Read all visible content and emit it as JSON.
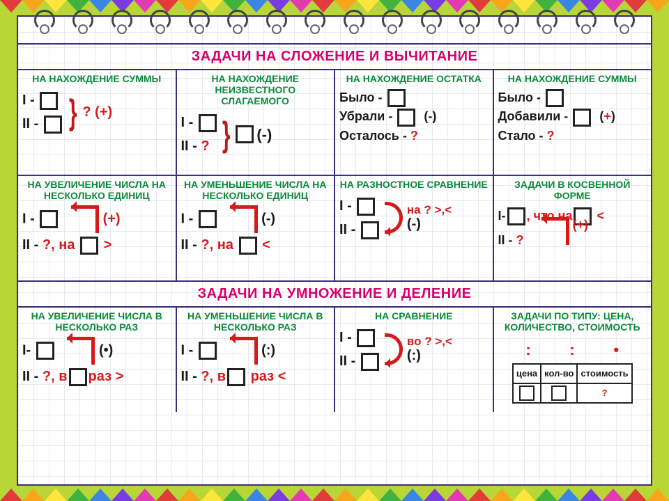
{
  "bunting_colors": [
    "#e23b3b",
    "#f7a51b",
    "#ffe43b",
    "#3fb23f",
    "#3b86e2",
    "#7a3be2",
    "#e23bb2",
    "#e23b3b",
    "#f7a51b",
    "#ffe43b",
    "#3fb23f",
    "#3b86e2",
    "#7a3be2",
    "#e23bb2",
    "#e23b3b",
    "#f7a51b",
    "#ffe43b",
    "#3fb23f",
    "#3b86e2",
    "#7a3be2",
    "#e23bb2",
    "#e23b3b",
    "#f7a51b",
    "#ffe43b",
    "#3fb23f",
    "#3b86e2",
    "#7a3be2",
    "#e23bb2",
    "#e23b3b",
    "#f7a51b"
  ],
  "section1_title": "ЗАДАЧИ НА СЛОЖЕНИЕ И ВЫЧИТАНИЕ",
  "section2_title": "ЗАДАЧИ НА УМНОЖЕНИЕ И ДЕЛЕНИЕ",
  "row1": {
    "c1": {
      "title": "НА НАХОЖДЕНИЕ СУММЫ",
      "l1": "I -",
      "l2": "II -",
      "res": "? (",
      "op": "+",
      "close": ")"
    },
    "c2": {
      "title": "НА НАХОЖДЕНИЕ НЕИЗВЕСТНОГО СЛАГАЕМОГО",
      "l1": "I -",
      "l2": "II -",
      "q": "?",
      "op": "(-)"
    },
    "c3": {
      "title": "НА НАХОЖДЕНИЕ ОСТАТКА",
      "l1": "Было -",
      "l2": "Убрали -",
      "op": "(-)",
      "l3": "Осталось -",
      "q": "?"
    },
    "c4": {
      "title": "НА НАХОЖДЕНИЕ СУММЫ",
      "l1": "Было -",
      "l2": "Добавили -",
      "op": "+",
      "l3": "Стало -",
      "q": "?"
    }
  },
  "row2": {
    "c1": {
      "title": "НА УВЕЛИЧЕНИЕ ЧИСЛА НА НЕСКОЛЬКО ЕДИНИЦ",
      "l1": "I -",
      "l2": "II -",
      "q": "?, на",
      "cmp": ">",
      "op": "(+)"
    },
    "c2": {
      "title": "НА УМЕНЬШЕНИЕ ЧИСЛА НА НЕСКОЛЬКО ЕДИНИЦ",
      "l1": "I -",
      "l2": "II -",
      "q": "?, на",
      "cmp": "<",
      "op": "(-)"
    },
    "c3": {
      "title": "НА РАЗНОСТНОЕ СРАВНЕНИЕ",
      "l1": "I -",
      "l2": "II -",
      "q": "на ? >,<",
      "op": "(-)"
    },
    "c4": {
      "title": "ЗАДАЧИ В КОСВЕННОЙ ФОРМЕ",
      "l1": "I-",
      "mid": ", что на",
      "cmp": "<",
      "l2": "II -",
      "q": "?",
      "op": "(+)"
    }
  },
  "row3": {
    "c1": {
      "title": "НА УВЕЛИЧЕНИЕ ЧИСЛА В НЕСКОЛЬКО РАЗ",
      "l1": "I-",
      "l2": "II -",
      "q": "?, в",
      "word": "раз",
      "cmp": ">",
      "op": "(•)"
    },
    "c2": {
      "title": "НА УМЕНЬШЕНИЕ ЧИСЛА В НЕСКОЛЬКО РАЗ",
      "l1": "I -",
      "l2": "II -",
      "q": "?, в",
      "word": "раз",
      "cmp": "<",
      "op": "(:)"
    },
    "c3": {
      "title": "НА СРАВНЕНИЕ",
      "l1": "I -",
      "l2": "II -",
      "q": "во ? >,<",
      "op": "(:)"
    },
    "c4": {
      "title": "ЗАДАЧИ ПО ТИПУ: ЦЕНА, КОЛИЧЕСТВО, СТОИМОСТЬ",
      "th1": "цена",
      "th2": "кол-во",
      "th3": "стоимость",
      "q": "?",
      "sym1": ":",
      "sym2": ":",
      "sym3": "•"
    }
  }
}
